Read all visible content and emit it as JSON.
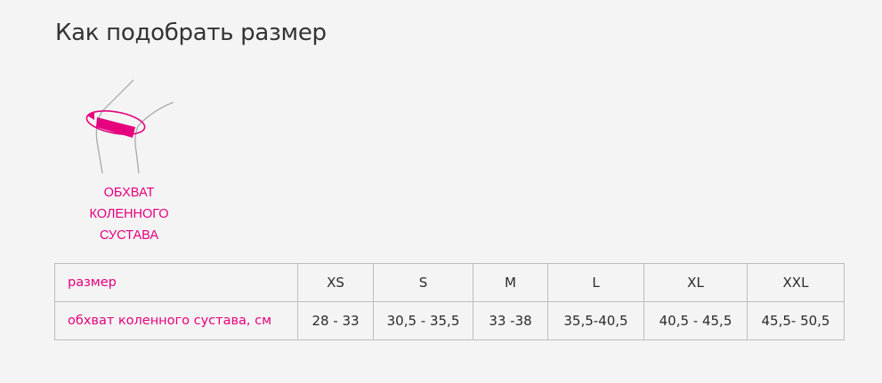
{
  "title": "Как подобрать размер",
  "illustration": {
    "caption": [
      "ОБХВАТ",
      "КОЛЕННОГО",
      "СУСТАВА"
    ],
    "accent": "#e6007e"
  },
  "table": {
    "rows": [
      {
        "label": "размер",
        "values": [
          "XS",
          "S",
          "M",
          "L",
          "XL",
          "XXL"
        ]
      },
      {
        "label": "обхват коленного сустава, см",
        "values": [
          "28 - 33",
          "30,5 - 35,5",
          "33 -38",
          "35,5-40,5",
          "40,5 - 45,5",
          "45,5- 50,5"
        ]
      }
    ]
  }
}
